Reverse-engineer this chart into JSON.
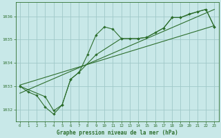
{
  "title": "Graphe pression niveau de la mer (hPa)",
  "background_color": "#c8e8e8",
  "grid_color": "#a0c8c8",
  "line_color": "#2d6e2d",
  "xlim": [
    -0.5,
    23.5
  ],
  "ylim": [
    1031.5,
    1036.6
  ],
  "xticks": [
    0,
    1,
    2,
    3,
    4,
    5,
    6,
    7,
    8,
    9,
    10,
    11,
    12,
    13,
    14,
    15,
    16,
    17,
    18,
    19,
    20,
    21,
    22,
    23
  ],
  "yticks": [
    1032,
    1033,
    1034,
    1035,
    1036
  ],
  "series1": [
    [
      0,
      1033.0
    ],
    [
      1,
      1032.75
    ],
    [
      2,
      1032.6
    ],
    [
      3,
      1032.1
    ],
    [
      4,
      1031.8
    ],
    [
      5,
      1032.2
    ],
    [
      6,
      1033.3
    ],
    [
      7,
      1033.6
    ],
    [
      8,
      1034.35
    ],
    [
      9,
      1035.2
    ],
    [
      10,
      1035.55
    ],
    [
      11,
      1035.45
    ],
    [
      12,
      1035.05
    ],
    [
      13,
      1035.05
    ],
    [
      14,
      1035.05
    ],
    [
      15,
      1035.1
    ],
    [
      16,
      1035.3
    ],
    [
      17,
      1035.5
    ],
    [
      18,
      1035.95
    ],
    [
      19,
      1035.95
    ],
    [
      20,
      1036.1
    ],
    [
      21,
      1036.2
    ],
    [
      22,
      1036.3
    ],
    [
      23,
      1035.55
    ]
  ],
  "series2": [
    [
      0,
      1033.0
    ],
    [
      3,
      1032.55
    ],
    [
      4,
      1031.95
    ],
    [
      5,
      1032.2
    ],
    [
      6,
      1033.3
    ],
    [
      7,
      1033.6
    ],
    [
      9,
      1034.35
    ],
    [
      12,
      1035.05
    ],
    [
      14,
      1035.05
    ],
    [
      15,
      1035.1
    ],
    [
      17,
      1035.5
    ],
    [
      18,
      1035.95
    ],
    [
      19,
      1035.95
    ],
    [
      21,
      1036.2
    ],
    [
      22,
      1036.3
    ],
    [
      23,
      1035.55
    ]
  ],
  "series3_linear": [
    [
      0,
      1032.7
    ],
    [
      23,
      1036.3
    ]
  ],
  "series4_linear": [
    [
      0,
      1033.05
    ],
    [
      23,
      1035.6
    ]
  ]
}
